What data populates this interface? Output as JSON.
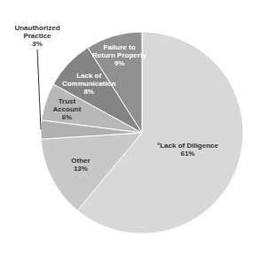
{
  "chart_data": {
    "type": "pie",
    "categories": [
      "°Lack of Diligence",
      "Other",
      "Unauthorized\nPractice",
      "Trust\nAccount",
      "Lack of\nCommunication",
      "Failure to\nReturn Property"
    ],
    "values": [
      61,
      13,
      3,
      6,
      8,
      9
    ],
    "value_labels": [
      "61%",
      "13%",
      "3%",
      "6%",
      "8%",
      "9%"
    ],
    "colors": [
      "#d8d8d8",
      "#c8c8c8",
      "#b0b0b0",
      "#b8b8b8",
      "#848484",
      "#909090"
    ],
    "data_labels": true
  }
}
